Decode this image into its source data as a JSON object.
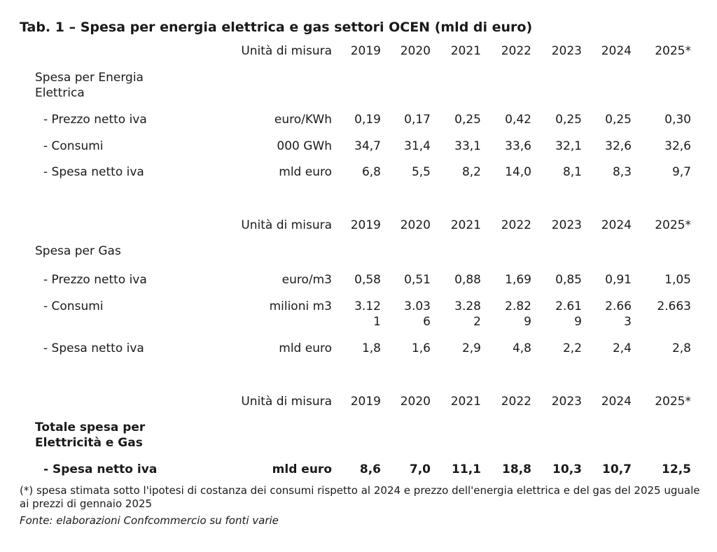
{
  "title": "Tab. 1 – Spesa per energia elettrica e gas settori OCEN (mld di euro)",
  "header": {
    "unit_label": "Unità di misura",
    "years": [
      "2019",
      "2020",
      "2021",
      "2022",
      "2023",
      "2024",
      "2025*"
    ]
  },
  "electricity": {
    "section_label": "Spesa per Energia Elettrica",
    "rows": [
      {
        "label": "- Prezzo netto iva",
        "unit": "euro/KWh",
        "values": [
          "0,19",
          "0,17",
          "0,25",
          "0,42",
          "0,25",
          "0,25",
          "0,30"
        ]
      },
      {
        "label": "- Consumi",
        "unit": "000 GWh",
        "values": [
          "34,7",
          "31,4",
          "33,1",
          "33,6",
          "32,1",
          "32,6",
          "32,6"
        ]
      },
      {
        "label": "- Spesa netto iva",
        "unit": "mld euro",
        "values": [
          "6,8",
          "5,5",
          "8,2",
          "14,0",
          "8,1",
          "8,3",
          "9,7"
        ]
      }
    ]
  },
  "gas": {
    "section_label": "Spesa per Gas",
    "rows": [
      {
        "label": "- Prezzo netto iva",
        "unit": "euro/m3",
        "values": [
          "0,58",
          "0,51",
          "0,88",
          "1,69",
          "0,85",
          "0,91",
          "1,05"
        ]
      },
      {
        "label": "- Consumi",
        "unit": "milioni m3",
        "values": [
          "3.121",
          "3.036",
          "3.282",
          "2.829",
          "2.619",
          "2.663",
          "2.663"
        ]
      },
      {
        "label": "- Spesa netto iva",
        "unit": "mld euro",
        "values": [
          "1,8",
          "1,6",
          "2,9",
          "4,8",
          "2,2",
          "2,4",
          "2,8"
        ]
      }
    ]
  },
  "total": {
    "section_label": "Totale spesa per Elettricità e Gas",
    "rows": [
      {
        "label": "- Spesa netto iva",
        "unit": "mld euro",
        "values": [
          "8,6",
          "7,0",
          "11,1",
          "18,8",
          "10,3",
          "10,7",
          "12,5"
        ]
      }
    ]
  },
  "footnote": "(*) spesa stimata sotto l'ipotesi di costanza dei consumi rispetto al 2024 e prezzo dell'energia elettrica e del gas del 2025 uguale ai prezzi di gennaio 2025",
  "source": "Fonte: elaborazioni Confcommercio su fonti varie"
}
